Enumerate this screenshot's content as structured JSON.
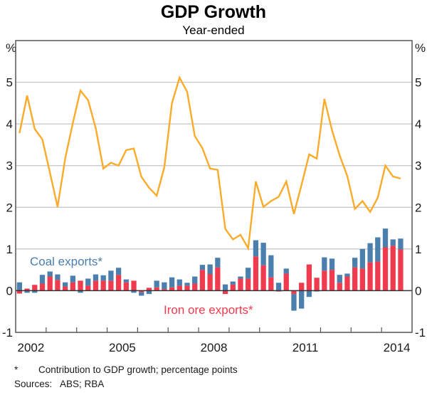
{
  "chart_data": {
    "type": "bar+line",
    "title": "GDP Growth",
    "subtitle": "Year-ended",
    "ylabel_left": "%",
    "ylabel_right": "%",
    "ylim": [
      -1,
      6
    ],
    "yticks": [
      -1,
      0,
      1,
      2,
      3,
      4,
      5
    ],
    "ytick_labels": [
      "-1",
      "0",
      "1",
      "2",
      "3",
      "4",
      "5"
    ],
    "xlim": [
      2002,
      2015
    ],
    "xtick_positions": [
      2003,
      2004,
      2005,
      2006,
      2007,
      2008,
      2009,
      2010,
      2011,
      2012,
      2013,
      2014
    ],
    "xtick_labels": [
      {
        "label": "2002",
        "year": 2002
      },
      {
        "label": "2005",
        "year": 2005
      },
      {
        "label": "2008",
        "year": 2008
      },
      {
        "label": "2011",
        "year": 2011
      },
      {
        "label": "2014",
        "year": 2014
      }
    ],
    "grid": true,
    "frequency": "quarterly",
    "start_quarter": "2002Q1",
    "quarters": [
      "2002Q1",
      "2002Q2",
      "2002Q3",
      "2002Q4",
      "2003Q1",
      "2003Q2",
      "2003Q3",
      "2003Q4",
      "2004Q1",
      "2004Q2",
      "2004Q3",
      "2004Q4",
      "2005Q1",
      "2005Q2",
      "2005Q3",
      "2005Q4",
      "2006Q1",
      "2006Q2",
      "2006Q3",
      "2006Q4",
      "2007Q1",
      "2007Q2",
      "2007Q3",
      "2007Q4",
      "2008Q1",
      "2008Q2",
      "2008Q3",
      "2008Q4",
      "2009Q1",
      "2009Q2",
      "2009Q3",
      "2009Q4",
      "2010Q1",
      "2010Q2",
      "2010Q3",
      "2010Q4",
      "2011Q1",
      "2011Q2",
      "2011Q3",
      "2011Q4",
      "2012Q1",
      "2012Q2",
      "2012Q3",
      "2012Q4",
      "2013Q1",
      "2013Q2",
      "2013Q3",
      "2013Q4",
      "2014Q1",
      "2014Q2",
      "2014Q3"
    ],
    "series": [
      {
        "name": "GDP growth",
        "type": "line",
        "color": "#fbab2a",
        "values": [
          3.78,
          4.68,
          3.88,
          3.63,
          2.83,
          2.01,
          3.17,
          4.02,
          4.8,
          4.57,
          3.9,
          2.93,
          3.07,
          3.0,
          3.37,
          3.41,
          2.73,
          2.47,
          2.28,
          2.96,
          4.5,
          5.11,
          4.77,
          3.71,
          3.42,
          2.93,
          2.9,
          1.48,
          1.23,
          1.34,
          1.02,
          2.62,
          2.01,
          2.15,
          2.25,
          2.62,
          1.84,
          2.54,
          3.27,
          3.17,
          4.6,
          3.85,
          3.25,
          2.75,
          1.96,
          2.15,
          1.89,
          2.23,
          3.0,
          2.74,
          2.69
        ]
      },
      {
        "name": "Iron ore exports*",
        "type": "stacked-bar",
        "color": "#f03a4e",
        "values": [
          -0.07,
          0.05,
          0.14,
          0.17,
          0.34,
          0.26,
          0.1,
          0.2,
          0.24,
          0.12,
          0.24,
          0.24,
          0.24,
          0.38,
          0.2,
          0.24,
          -0.04,
          0.07,
          0.08,
          0.04,
          0.08,
          0.12,
          0.12,
          0.17,
          0.5,
          0.4,
          0.56,
          -0.08,
          0.15,
          0.29,
          0.29,
          0.82,
          0.61,
          0.32,
          -0.02,
          0.41,
          -0.08,
          0.19,
          0.63,
          0.31,
          0.48,
          0.5,
          0.19,
          0.34,
          0.56,
          0.53,
          0.68,
          0.7,
          1.04,
          1.08,
          0.99
        ]
      },
      {
        "name": "Coal exports*",
        "type": "stacked-bar",
        "color": "#4a7fae",
        "values": [
          0.2,
          -0.05,
          -0.05,
          0.21,
          0.12,
          0.13,
          0.1,
          0.16,
          -0.05,
          0.17,
          0.15,
          0.13,
          0.24,
          0.17,
          0.07,
          -0.05,
          -0.08,
          -0.08,
          0.16,
          0.16,
          0.24,
          0.15,
          0.07,
          0.17,
          0.12,
          0.23,
          0.23,
          0.15,
          0.07,
          0.05,
          0.26,
          0.39,
          0.54,
          0.53,
          0.19,
          0.12,
          -0.4,
          -0.43,
          -0.15,
          -0.02,
          0.32,
          0.27,
          0.19,
          0.07,
          0.23,
          0.47,
          0.46,
          0.58,
          0.45,
          0.15,
          0.26
        ]
      }
    ],
    "annotations": [
      {
        "text": "Coal exports*",
        "series": "Coal exports*"
      },
      {
        "text": "Iron ore exports*",
        "series": "Iron ore exports*"
      }
    ]
  },
  "footnotes": {
    "star": "*",
    "note": "Contribution to GDP growth; percentage points",
    "sources_label": "Sources:",
    "sources": "ABS; RBA"
  }
}
